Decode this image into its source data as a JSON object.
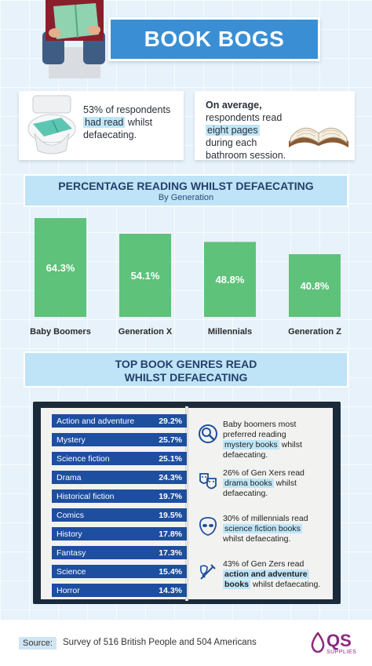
{
  "header": {
    "title": "BOOK BOGS"
  },
  "stat_cards": [
    {
      "pre": "53% of respondents",
      "highlight": "had read",
      "post": "whilst defaecating."
    },
    {
      "pre": "On average,",
      "mid": "respondents read",
      "highlight": "eight pages",
      "post1": "during each",
      "post2": "bathroom session."
    }
  ],
  "chart1": {
    "title": "PERCENTAGE READING WHILST DEFAECATING",
    "subtitle": "By Generation"
  },
  "chart_data": [
    {
      "type": "bar",
      "title": "PERCENTAGE READING WHILST DEFAECATING",
      "subtitle": "By Generation",
      "categories": [
        "Baby Boomers",
        "Generation X",
        "Millennials",
        "Generation Z"
      ],
      "values": [
        64.3,
        54.1,
        48.8,
        40.8
      ],
      "value_labels": [
        "64.3%",
        "54.1%",
        "48.8%",
        "40.8%"
      ],
      "ylim": [
        0,
        70
      ],
      "color": "#5ec27a"
    },
    {
      "type": "table",
      "title": "TOP BOOK GENRES READ WHILST DEFAECATING",
      "categories": [
        "Action and adventure",
        "Mystery",
        "Science fiction",
        "Drama",
        "Historical fiction",
        "Comics",
        "History",
        "Fantasy",
        "Science",
        "Horror"
      ],
      "values": [
        29.2,
        25.7,
        25.1,
        24.3,
        19.7,
        19.5,
        17.8,
        17.3,
        15.4,
        14.3
      ],
      "value_labels": [
        "29.2%",
        "25.7%",
        "25.1%",
        "24.3%",
        "19.7%",
        "19.5%",
        "17.8%",
        "17.3%",
        "15.4%",
        "14.3%"
      ]
    }
  ],
  "chart2": {
    "title_line1": "TOP BOOK GENRES READ",
    "title_line2": "WHILST DEFAECATING"
  },
  "notes": [
    {
      "icon": "detective-icon",
      "l1": "Baby boomers most",
      "l2": "preferred reading",
      "hl": "mystery books",
      "l4": "whilst",
      "l5": "defaecating."
    },
    {
      "icon": "theatre-masks-icon",
      "l1": "26% of Gen Xers read",
      "hl": "drama books",
      "l3": "whilst",
      "l4": "defaecating."
    },
    {
      "icon": "alien-icon",
      "l1": "30% of millennials read",
      "hl": "science fiction books",
      "l3": "whilst defaecating."
    },
    {
      "icon": "sword-shield-icon",
      "l1": "43% of Gen Zers read",
      "hl1": "action and adventure",
      "hl2": "books",
      "l3": "whilst defaecating."
    }
  ],
  "footer": {
    "source_label": "Source:",
    "source_text": "Survey of 516 British People and 504 Americans",
    "logo_text": "QS",
    "logo_sub": "SUPPLIES"
  },
  "colors": {
    "accent": "#3a8fd4",
    "bar": "#5ec27a",
    "genre_row": "#1d4ea0",
    "banner": "#bfe3f7"
  }
}
